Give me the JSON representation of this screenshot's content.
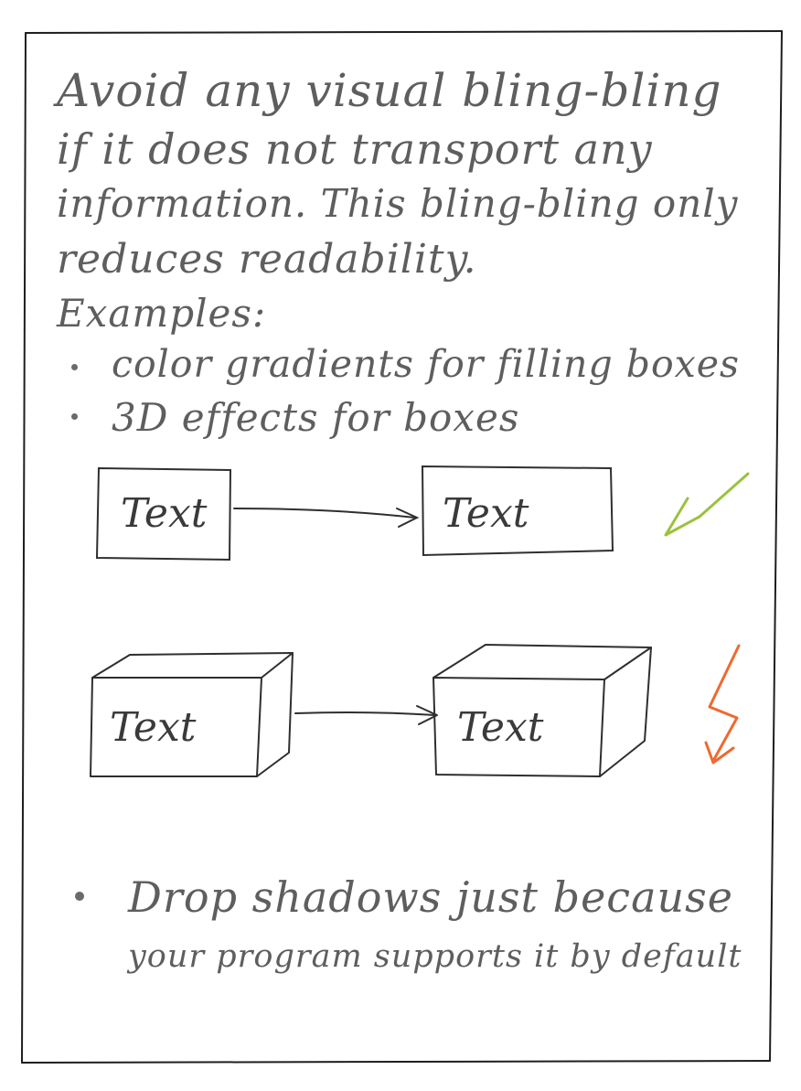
{
  "intro": {
    "lines": [
      "Avoid any visual bling-bling",
      "if it does not transport any",
      "information. This bling-bling only",
      "reduces readability."
    ]
  },
  "examples": {
    "heading": "Examples:",
    "items": [
      "color gradients for filling boxes",
      "3D effects for boxes"
    ]
  },
  "diagrams": {
    "flat_row": {
      "left_label": "Text",
      "right_label": "Text",
      "verdict_icon": "checkmark-icon",
      "verdict_color": "#9ac23c"
    },
    "threed_row": {
      "left_label": "Text",
      "right_label": "Text",
      "verdict_icon": "lightning-bolt-icon",
      "verdict_color": "#ee6a2f"
    }
  },
  "footer_bullet": {
    "lines": [
      "Drop shadows just because",
      "your program supports it by default"
    ]
  },
  "colors": {
    "ink": "#3a3a3a",
    "pencil": "#5e5e5e"
  }
}
